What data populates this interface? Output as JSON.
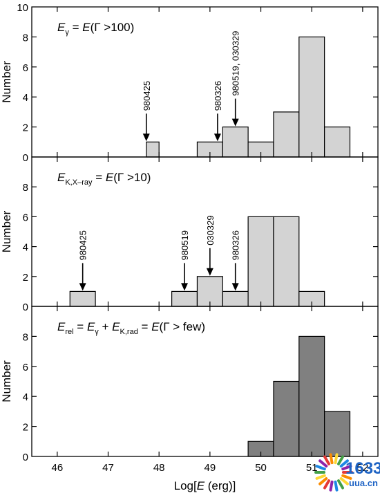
{
  "chart_data": [
    {
      "type": "bar",
      "title_parts": [
        {
          "t": "E",
          "i": true
        },
        {
          "t": "γ",
          "sub": true
        },
        {
          "t": " = "
        },
        {
          "t": "E",
          "i": true
        },
        {
          "t": "(Γ >100)"
        }
      ],
      "ylabel": "Number",
      "ylim": [
        0,
        10
      ],
      "yticks": [
        "0",
        "2",
        "4",
        "6",
        "8",
        "10"
      ],
      "bar_color": "#d3d3d3",
      "bins": [
        {
          "x0": 47.75,
          "x1": 48.0,
          "value": 1
        },
        {
          "x0": 48.75,
          "x1": 49.25,
          "value": 1
        },
        {
          "x0": 49.25,
          "x1": 49.75,
          "value": 2
        },
        {
          "x0": 49.75,
          "x1": 50.25,
          "value": 1
        },
        {
          "x0": 50.25,
          "x1": 50.75,
          "value": 3
        },
        {
          "x0": 50.75,
          "x1": 51.25,
          "value": 8
        },
        {
          "x0": 51.25,
          "x1": 51.75,
          "value": 2
        }
      ],
      "annotations": [
        {
          "label": "980425",
          "x": 47.75,
          "y": 1
        },
        {
          "label": "980326",
          "x": 49.15,
          "y": 1
        },
        {
          "label": "980519, 030329",
          "x": 49.5,
          "y": 2
        }
      ]
    },
    {
      "type": "bar",
      "title_parts": [
        {
          "t": "E",
          "i": true
        },
        {
          "t": "K,X–ray",
          "sub": true
        },
        {
          "t": " = "
        },
        {
          "t": "E",
          "i": true
        },
        {
          "t": "(Γ >10)"
        }
      ],
      "ylabel": "Number",
      "ylim": [
        0,
        10
      ],
      "yticks": [
        "0",
        "2",
        "4",
        "6",
        "8"
      ],
      "bar_color": "#d3d3d3",
      "bins": [
        {
          "x0": 46.25,
          "x1": 46.75,
          "value": 1
        },
        {
          "x0": 48.25,
          "x1": 48.75,
          "value": 1
        },
        {
          "x0": 48.75,
          "x1": 49.25,
          "value": 2
        },
        {
          "x0": 49.25,
          "x1": 49.75,
          "value": 1
        },
        {
          "x0": 49.75,
          "x1": 50.25,
          "value": 6
        },
        {
          "x0": 50.25,
          "x1": 50.75,
          "value": 6
        },
        {
          "x0": 50.75,
          "x1": 51.25,
          "value": 1
        }
      ],
      "annotations": [
        {
          "label": "980425",
          "x": 46.5,
          "y": 1
        },
        {
          "label": "980519",
          "x": 48.5,
          "y": 1
        },
        {
          "label": "030329",
          "x": 49.0,
          "y": 2
        },
        {
          "label": "980326",
          "x": 49.5,
          "y": 1
        }
      ]
    },
    {
      "type": "bar",
      "title_parts": [
        {
          "t": "E",
          "i": true
        },
        {
          "t": "rel",
          "sub": true
        },
        {
          "t": " = "
        },
        {
          "t": "E",
          "i": true
        },
        {
          "t": "γ",
          "sub": true
        },
        {
          "t": " + "
        },
        {
          "t": "E",
          "i": true
        },
        {
          "t": "K,rad",
          "sub": true
        },
        {
          "t": " = "
        },
        {
          "t": "E",
          "i": true
        },
        {
          "t": "(Γ > few)"
        }
      ],
      "ylabel": "Number",
      "ylim": [
        0,
        10
      ],
      "yticks": [
        "0",
        "2",
        "4",
        "6",
        "8"
      ],
      "bar_color": "#808080",
      "bins": [
        {
          "x0": 49.75,
          "x1": 50.25,
          "value": 1
        },
        {
          "x0": 50.25,
          "x1": 50.75,
          "value": 5
        },
        {
          "x0": 50.75,
          "x1": 51.25,
          "value": 8
        },
        {
          "x0": 51.25,
          "x1": 51.75,
          "value": 3
        }
      ],
      "annotations": []
    }
  ],
  "xaxis": {
    "xlim": [
      45.5,
      52.3
    ],
    "ticks": [
      46,
      47,
      48,
      49,
      50,
      51,
      52
    ],
    "tick_labels": [
      "46",
      "47",
      "48",
      "49",
      "50",
      "51",
      "52"
    ],
    "label_parts": [
      {
        "t": "Log["
      },
      {
        "t": "E",
        "i": true
      },
      {
        "t": " (erg)]"
      }
    ]
  },
  "watermark": {
    "line1": "1633",
    "line2": "uua.cn"
  }
}
